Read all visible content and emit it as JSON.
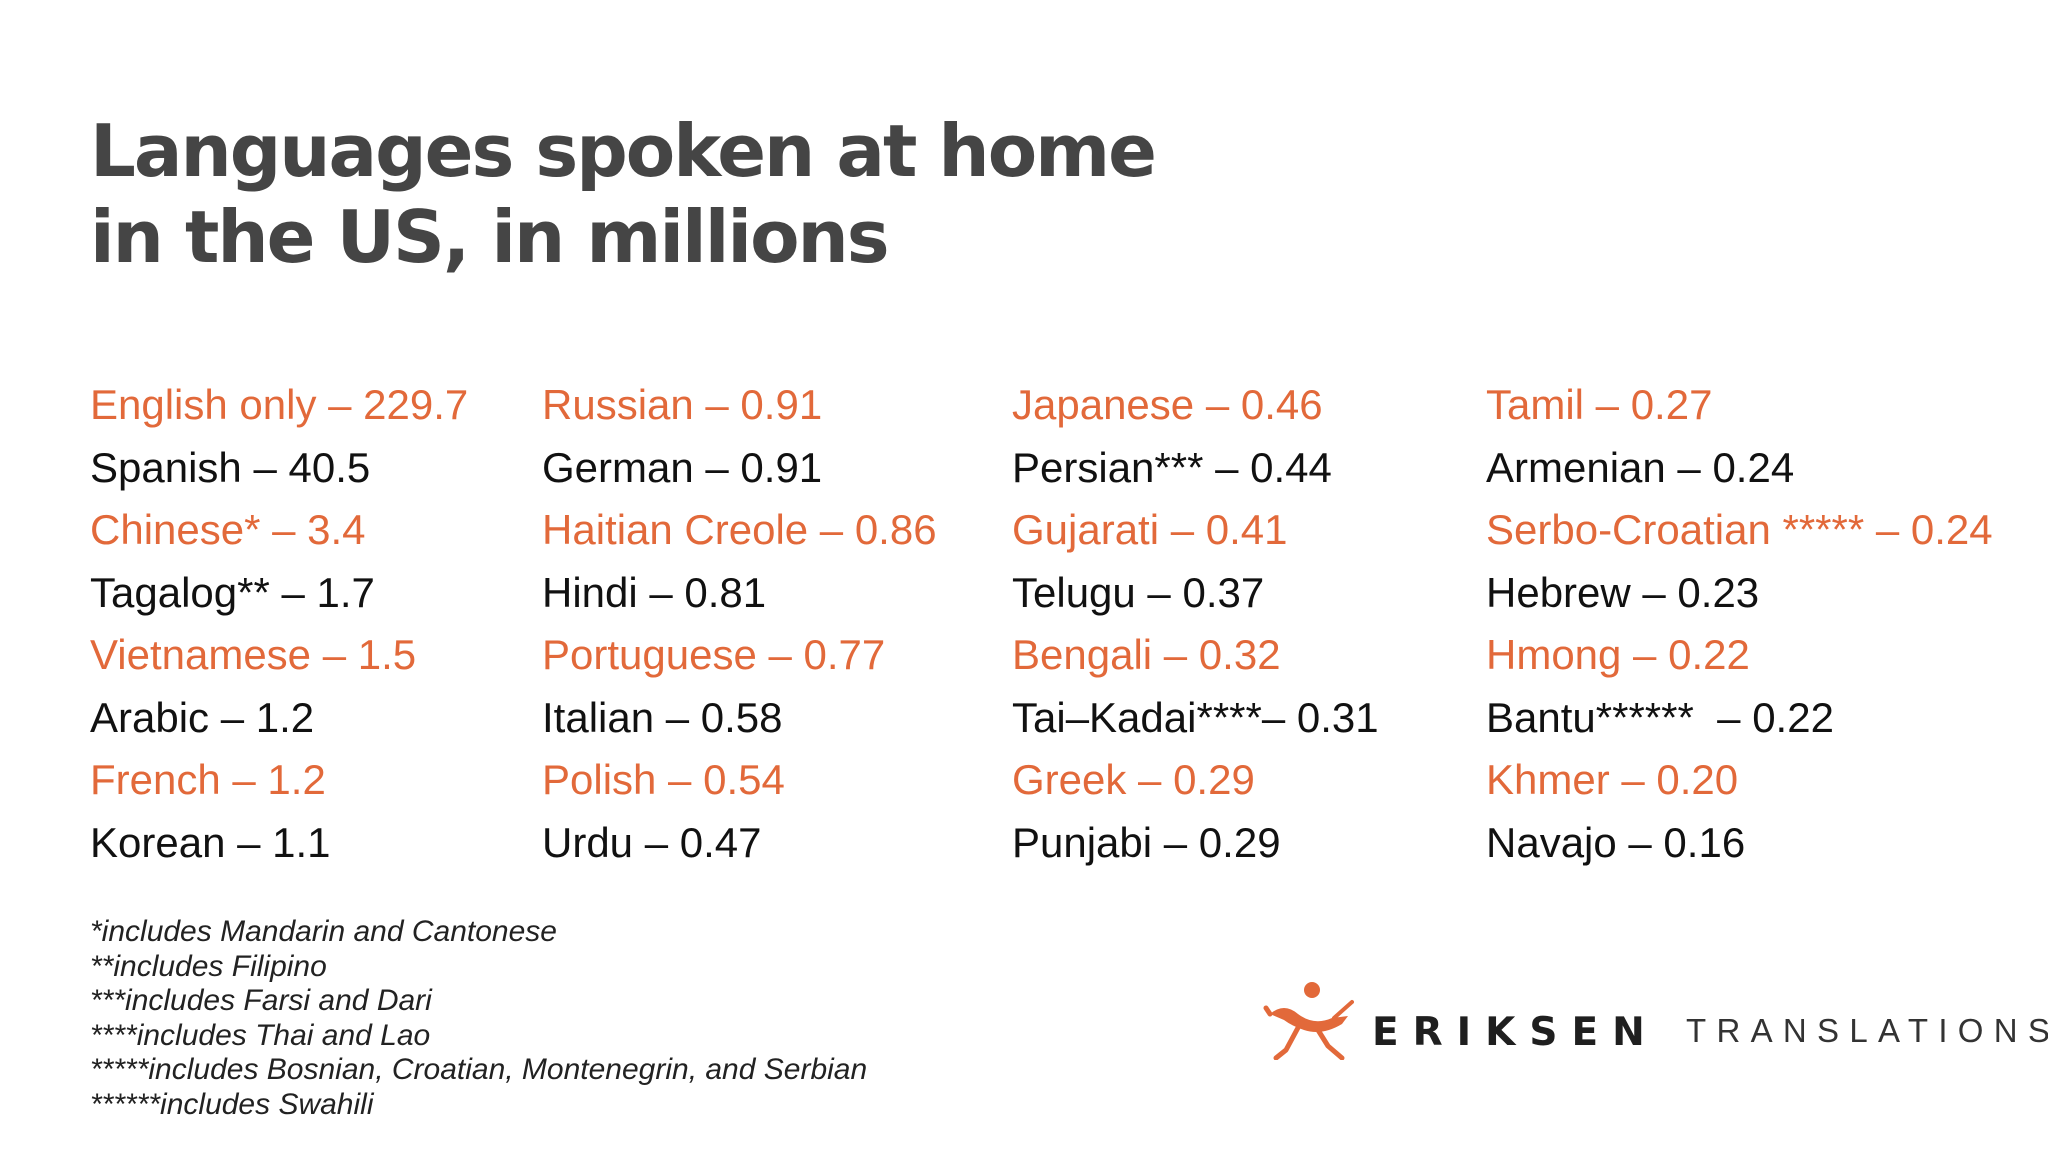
{
  "title": {
    "line1": "Languages spoken at home",
    "line2": "in the US, in millions"
  },
  "columns": [
    [
      {
        "text": "English only – 229.7",
        "highlight": true
      },
      {
        "text": "Spanish – 40.5",
        "highlight": false
      },
      {
        "text": "Chinese* – 3.4",
        "highlight": true
      },
      {
        "text": "Tagalog** – 1.7",
        "highlight": false
      },
      {
        "text": "Vietnamese – 1.5",
        "highlight": true
      },
      {
        "text": "Arabic – 1.2",
        "highlight": false
      },
      {
        "text": "French – 1.2",
        "highlight": true
      },
      {
        "text": "Korean – 1.1",
        "highlight": false
      }
    ],
    [
      {
        "text": "Russian – 0.91",
        "highlight": true
      },
      {
        "text": "German – 0.91",
        "highlight": false
      },
      {
        "text": "Haitian Creole – 0.86",
        "highlight": true
      },
      {
        "text": "Hindi – 0.81",
        "highlight": false
      },
      {
        "text": "Portuguese – 0.77",
        "highlight": true
      },
      {
        "text": "Italian – 0.58",
        "highlight": false
      },
      {
        "text": "Polish – 0.54",
        "highlight": true
      },
      {
        "text": "Urdu – 0.47",
        "highlight": false
      }
    ],
    [
      {
        "text": "Japanese – 0.46",
        "highlight": true
      },
      {
        "text": "Persian*** – 0.44",
        "highlight": false
      },
      {
        "text": "Gujarati – 0.41",
        "highlight": true
      },
      {
        "text": "Telugu – 0.37",
        "highlight": false
      },
      {
        "text": "Bengali – 0.32",
        "highlight": true
      },
      {
        "text": "Tai–Kadai****– 0.31",
        "highlight": false
      },
      {
        "text": "Greek – 0.29",
        "highlight": true
      },
      {
        "text": "Punjabi – 0.29",
        "highlight": false
      }
    ],
    [
      {
        "text": "Tamil – 0.27",
        "highlight": true
      },
      {
        "text": "Armenian – 0.24",
        "highlight": false
      },
      {
        "text": "Serbo-Croatian ***** – 0.24",
        "highlight": true
      },
      {
        "text": "Hebrew – 0.23",
        "highlight": false
      },
      {
        "text": "Hmong – 0.22",
        "highlight": true
      },
      {
        "text": "Bantu******  – 0.22",
        "highlight": false
      },
      {
        "text": "Khmer – 0.20",
        "highlight": true
      },
      {
        "text": "Navajo – 0.16",
        "highlight": false
      }
    ]
  ],
  "footnotes": [
    "*includes Mandarin and Cantonese",
    "**includes Filipino",
    "***includes Farsi and Dari",
    "****includes Thai and Lao",
    "*****includes Bosnian, Croatian, Montenegrin, and Serbian",
    "******includes Swahili"
  ],
  "logo": {
    "brand": "ERIKSEN",
    "sub": "TRANSLATIONS",
    "icon": "running-figure-icon"
  },
  "colors": {
    "accent": "#e2693a",
    "title": "#454545",
    "text": "#111111"
  }
}
